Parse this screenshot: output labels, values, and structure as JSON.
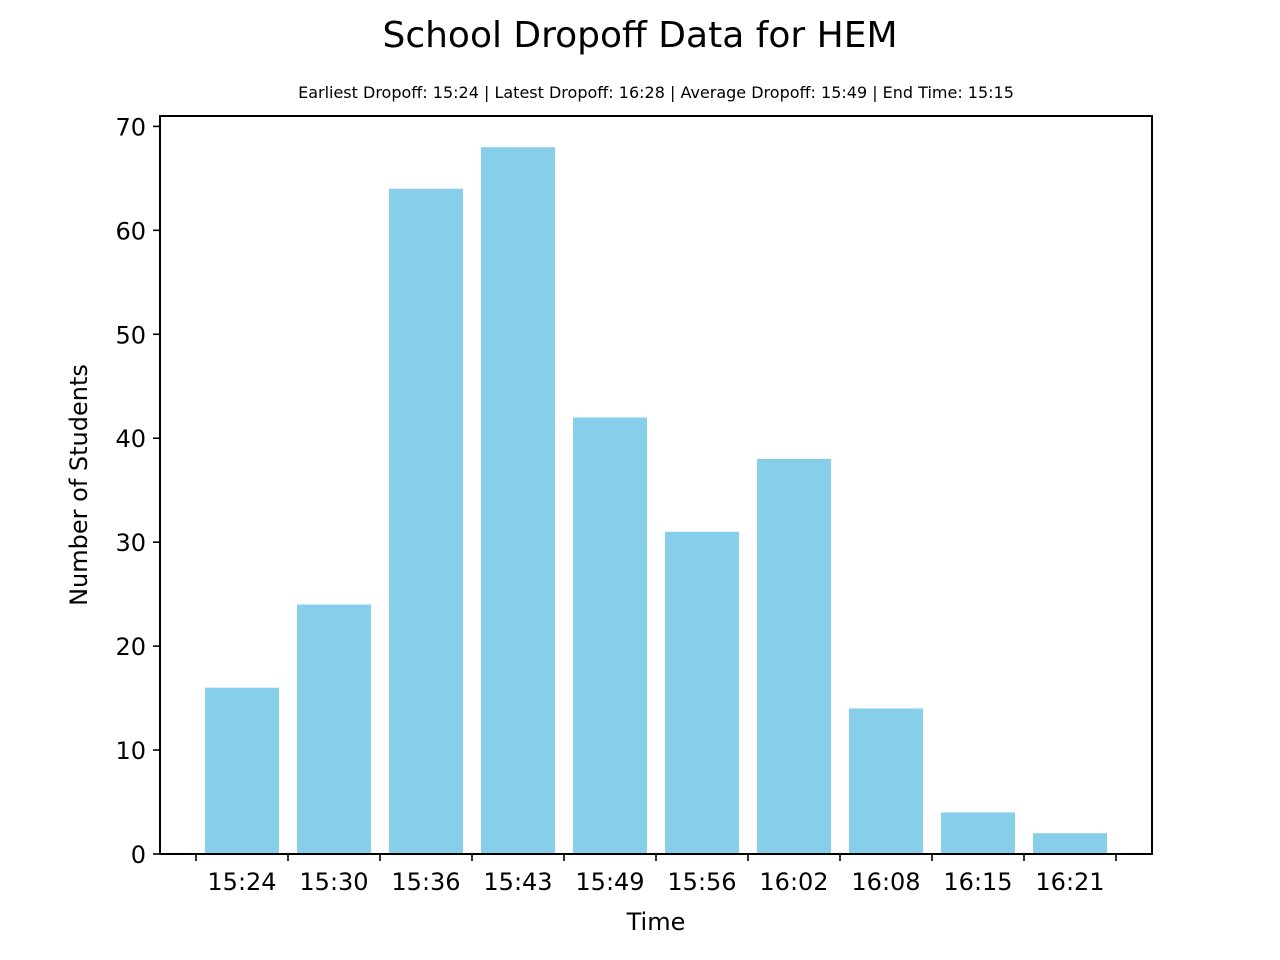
{
  "chart_data": {
    "type": "bar",
    "title": "School Dropoff Data for HEM",
    "subtitle": "Earliest Dropoff: 15:24 | Latest Dropoff: 16:28 | Average Dropoff: 15:49 | End Time: 15:15",
    "xlabel": "Time",
    "ylabel": "Number of Students",
    "categories": [
      "15:24",
      "15:30",
      "15:36",
      "15:43",
      "15:49",
      "15:56",
      "16:02",
      "16:08",
      "16:15",
      "16:21"
    ],
    "values": [
      16,
      24,
      64,
      68,
      42,
      31,
      38,
      14,
      4,
      2
    ],
    "ylim": [
      0,
      71
    ],
    "yticks": [
      0,
      10,
      20,
      30,
      40,
      50,
      60,
      70
    ],
    "xticks_extra_positions": 1,
    "bar_color": "#87CEEB",
    "grid": false,
    "legend": "none"
  }
}
